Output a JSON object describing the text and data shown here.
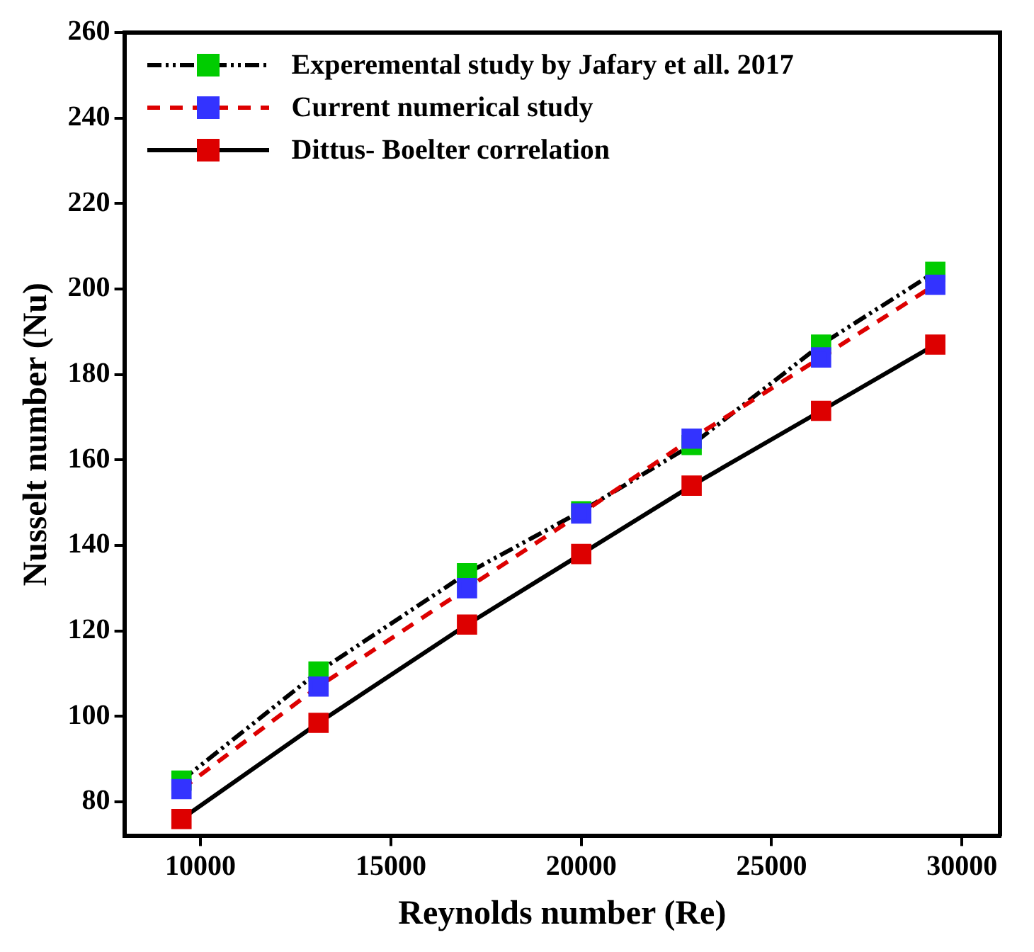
{
  "chart_data": {
    "type": "line",
    "xlabel": "Reynolds number (Re)",
    "ylabel": "Nusselt number (Nu)",
    "x": [
      9500,
      13100,
      17000,
      20000,
      22900,
      26300,
      29300
    ],
    "xlim": [
      8000,
      31000
    ],
    "xticks": [
      10000,
      15000,
      20000,
      25000,
      30000
    ],
    "ylim": [
      72,
      260
    ],
    "yticks": [
      80,
      100,
      120,
      140,
      160,
      180,
      200,
      220,
      240,
      260
    ],
    "grid": false,
    "legend": "top left",
    "marker": "square",
    "series": [
      {
        "name": "Experemental study by Jafary  et all. 2017",
        "color": "#00cc00",
        "line_style": "dotted",
        "values": [
          85,
          110.5,
          133.5,
          148,
          163.5,
          187,
          204
        ]
      },
      {
        "name": "Current numerical study",
        "color": "#3333ff",
        "line_style": "dashed",
        "values": [
          83,
          107,
          130,
          147.5,
          165,
          184,
          201
        ]
      },
      {
        "name": "Dittus- Boelter correlation",
        "color": "#dd0000",
        "line_style": "solid",
        "values": [
          76,
          98.5,
          121.5,
          138,
          154,
          171.5,
          187
        ]
      }
    ]
  }
}
